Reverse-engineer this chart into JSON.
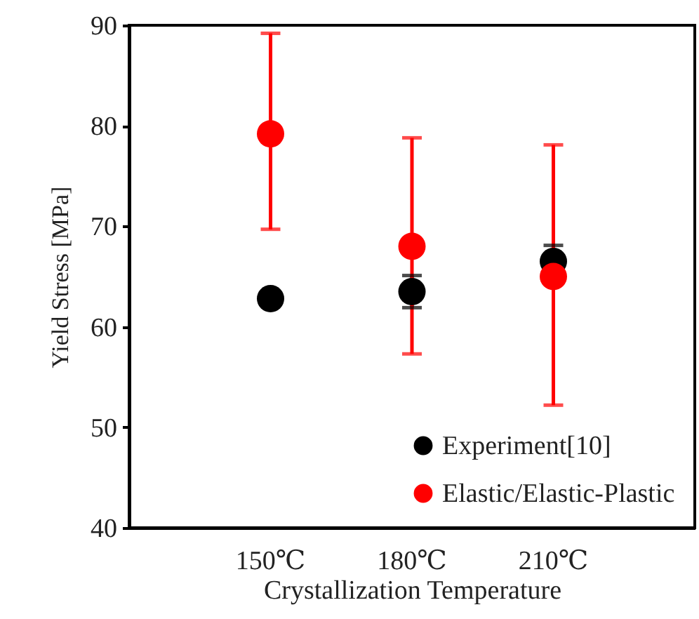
{
  "chart_data": {
    "type": "scatter",
    "xlabel": "Crystallization Temperature",
    "ylabel": "Yield Stress [MPa]",
    "categories": [
      "150℃",
      "180℃",
      "210℃"
    ],
    "series": [
      {
        "name": "Experiment[10]",
        "color": "#000000",
        "values": [
          62.8,
          63.5,
          66.5
        ],
        "errors": [
          null,
          1.6,
          1.6
        ]
      },
      {
        "name": "Elastic/Elastic-Plastic",
        "color": "#ff0000",
        "values": [
          79.2,
          68.0,
          65.0
        ],
        "errors": [
          [
            69.7,
            89.2
          ],
          [
            57.3,
            78.8
          ],
          [
            52.2,
            78.1
          ]
        ]
      }
    ],
    "ylim": [
      40,
      90
    ],
    "yticks": [
      40,
      50,
      60,
      70,
      80,
      90
    ],
    "grid": false,
    "legend": "bottom right",
    "marker": "circle"
  }
}
